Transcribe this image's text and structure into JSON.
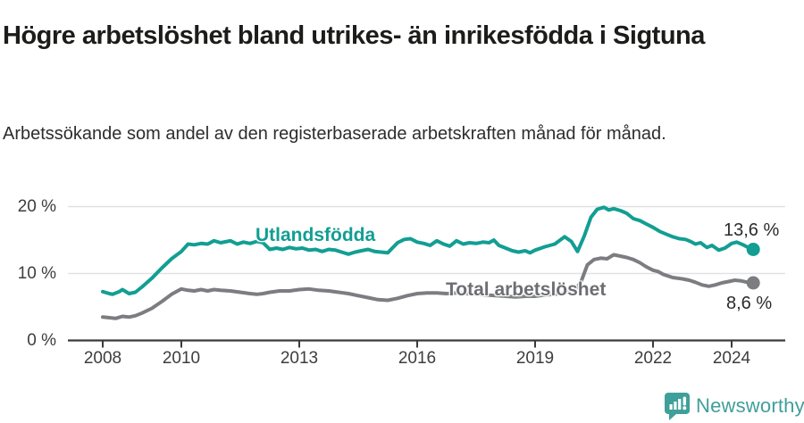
{
  "chart_data": {
    "type": "line",
    "title": "Högre arbetslöshet bland utrikes- än inrikesfödda i Sigtuna",
    "subtitle": "Arbetssökande som andel av den registerbaserade arbetskraften månad för månad.",
    "grid": "horizontal",
    "legend": "inline-labels",
    "x_axis": {
      "ticks": [
        2008,
        2010,
        2013,
        2016,
        2019,
        2022,
        2024
      ],
      "labels": [
        "2008",
        "2010",
        "2013",
        "2016",
        "2019",
        "2022",
        "2024"
      ],
      "range": [
        2008,
        2024.6
      ]
    },
    "y_axis": {
      "ticks": [
        0,
        10,
        20
      ],
      "labels": [
        "0 %",
        "10 %",
        "20 %"
      ],
      "range": [
        0,
        20
      ],
      "unit": "%"
    },
    "series": [
      {
        "name": "Utlandsfödda",
        "color": "#129e93",
        "end_label": "13,6 %",
        "end_value": 13.6,
        "points": [
          [
            2008.0,
            7.3
          ],
          [
            2008.17,
            7.0
          ],
          [
            2008.25,
            6.9
          ],
          [
            2008.42,
            7.3
          ],
          [
            2008.5,
            7.6
          ],
          [
            2008.67,
            7.0
          ],
          [
            2008.83,
            7.2
          ],
          [
            2009.0,
            8.0
          ],
          [
            2009.25,
            9.3
          ],
          [
            2009.5,
            10.8
          ],
          [
            2009.75,
            12.2
          ],
          [
            2010.0,
            13.3
          ],
          [
            2010.17,
            14.4
          ],
          [
            2010.33,
            14.3
          ],
          [
            2010.5,
            14.5
          ],
          [
            2010.67,
            14.4
          ],
          [
            2010.83,
            14.9
          ],
          [
            2011.0,
            14.6
          ],
          [
            2011.25,
            14.9
          ],
          [
            2011.42,
            14.4
          ],
          [
            2011.58,
            14.7
          ],
          [
            2011.75,
            14.5
          ],
          [
            2011.92,
            14.8
          ],
          [
            2012.08,
            14.6
          ],
          [
            2012.25,
            13.6
          ],
          [
            2012.42,
            13.8
          ],
          [
            2012.58,
            13.6
          ],
          [
            2012.75,
            13.9
          ],
          [
            2012.92,
            13.7
          ],
          [
            2013.08,
            13.8
          ],
          [
            2013.25,
            13.5
          ],
          [
            2013.42,
            13.6
          ],
          [
            2013.58,
            13.3
          ],
          [
            2013.75,
            13.6
          ],
          [
            2013.92,
            13.5
          ],
          [
            2014.08,
            13.2
          ],
          [
            2014.25,
            12.9
          ],
          [
            2014.42,
            13.2
          ],
          [
            2014.58,
            13.4
          ],
          [
            2014.75,
            13.6
          ],
          [
            2014.92,
            13.3
          ],
          [
            2015.08,
            13.2
          ],
          [
            2015.25,
            13.1
          ],
          [
            2015.5,
            14.6
          ],
          [
            2015.67,
            15.1
          ],
          [
            2015.83,
            15.2
          ],
          [
            2016.0,
            14.7
          ],
          [
            2016.17,
            14.5
          ],
          [
            2016.33,
            14.2
          ],
          [
            2016.5,
            14.9
          ],
          [
            2016.67,
            14.4
          ],
          [
            2016.83,
            14.1
          ],
          [
            2017.0,
            14.9
          ],
          [
            2017.17,
            14.4
          ],
          [
            2017.33,
            14.6
          ],
          [
            2017.5,
            14.5
          ],
          [
            2017.67,
            14.7
          ],
          [
            2017.83,
            14.6
          ],
          [
            2017.95,
            15.0
          ],
          [
            2018.08,
            14.2
          ],
          [
            2018.25,
            13.8
          ],
          [
            2018.42,
            13.4
          ],
          [
            2018.58,
            13.2
          ],
          [
            2018.75,
            13.4
          ],
          [
            2018.87,
            13.1
          ],
          [
            2019.0,
            13.5
          ],
          [
            2019.25,
            14.0
          ],
          [
            2019.5,
            14.4
          ],
          [
            2019.75,
            15.5
          ],
          [
            2019.92,
            14.8
          ],
          [
            2020.08,
            13.3
          ],
          [
            2020.25,
            15.6
          ],
          [
            2020.42,
            18.4
          ],
          [
            2020.58,
            19.6
          ],
          [
            2020.75,
            19.9
          ],
          [
            2020.87,
            19.5
          ],
          [
            2021.0,
            19.7
          ],
          [
            2021.17,
            19.4
          ],
          [
            2021.33,
            19.0
          ],
          [
            2021.5,
            18.2
          ],
          [
            2021.67,
            17.9
          ],
          [
            2021.83,
            17.4
          ],
          [
            2022.0,
            16.9
          ],
          [
            2022.17,
            16.3
          ],
          [
            2022.33,
            15.9
          ],
          [
            2022.5,
            15.5
          ],
          [
            2022.67,
            15.2
          ],
          [
            2022.83,
            15.1
          ],
          [
            2022.95,
            14.8
          ],
          [
            2023.08,
            14.4
          ],
          [
            2023.21,
            14.6
          ],
          [
            2023.37,
            13.9
          ],
          [
            2023.5,
            14.2
          ],
          [
            2023.67,
            13.5
          ],
          [
            2023.83,
            13.8
          ],
          [
            2024.0,
            14.5
          ],
          [
            2024.13,
            14.7
          ],
          [
            2024.29,
            14.3
          ],
          [
            2024.45,
            13.8
          ],
          [
            2024.55,
            13.6
          ]
        ]
      },
      {
        "name": "Total arbetslöshet",
        "color": "#7c7d80",
        "end_label": "8,6 %",
        "end_value": 8.6,
        "points": [
          [
            2008.0,
            3.5
          ],
          [
            2008.17,
            3.4
          ],
          [
            2008.33,
            3.3
          ],
          [
            2008.5,
            3.6
          ],
          [
            2008.67,
            3.5
          ],
          [
            2008.83,
            3.7
          ],
          [
            2009.0,
            4.1
          ],
          [
            2009.25,
            4.8
          ],
          [
            2009.5,
            5.8
          ],
          [
            2009.75,
            6.9
          ],
          [
            2010.0,
            7.7
          ],
          [
            2010.17,
            7.5
          ],
          [
            2010.33,
            7.4
          ],
          [
            2010.5,
            7.6
          ],
          [
            2010.67,
            7.4
          ],
          [
            2010.83,
            7.6
          ],
          [
            2011.0,
            7.5
          ],
          [
            2011.25,
            7.4
          ],
          [
            2011.5,
            7.2
          ],
          [
            2011.75,
            7.0
          ],
          [
            2011.92,
            6.9
          ],
          [
            2012.08,
            7.0
          ],
          [
            2012.25,
            7.2
          ],
          [
            2012.5,
            7.4
          ],
          [
            2012.75,
            7.4
          ],
          [
            2013.0,
            7.6
          ],
          [
            2013.25,
            7.7
          ],
          [
            2013.5,
            7.5
          ],
          [
            2013.75,
            7.4
          ],
          [
            2014.0,
            7.2
          ],
          [
            2014.25,
            7.0
          ],
          [
            2014.5,
            6.7
          ],
          [
            2014.75,
            6.4
          ],
          [
            2015.0,
            6.1
          ],
          [
            2015.25,
            6.0
          ],
          [
            2015.5,
            6.3
          ],
          [
            2015.75,
            6.7
          ],
          [
            2016.0,
            7.0
          ],
          [
            2016.25,
            7.1
          ],
          [
            2016.5,
            7.1
          ],
          [
            2016.75,
            7.0
          ],
          [
            2017.0,
            7.1
          ],
          [
            2017.25,
            7.0
          ],
          [
            2017.5,
            6.9
          ],
          [
            2017.75,
            6.8
          ],
          [
            2018.0,
            6.7
          ],
          [
            2018.25,
            6.6
          ],
          [
            2018.5,
            6.5
          ],
          [
            2018.75,
            6.6
          ],
          [
            2019.0,
            6.6
          ],
          [
            2019.25,
            6.8
          ],
          [
            2019.5,
            6.9
          ],
          [
            2019.75,
            7.1
          ],
          [
            2020.0,
            7.4
          ],
          [
            2020.17,
            8.8
          ],
          [
            2020.33,
            11.3
          ],
          [
            2020.5,
            12.1
          ],
          [
            2020.67,
            12.3
          ],
          [
            2020.83,
            12.2
          ],
          [
            2021.0,
            12.8
          ],
          [
            2021.17,
            12.6
          ],
          [
            2021.33,
            12.4
          ],
          [
            2021.5,
            12.1
          ],
          [
            2021.67,
            11.6
          ],
          [
            2021.83,
            11.0
          ],
          [
            2022.0,
            10.5
          ],
          [
            2022.13,
            10.3
          ],
          [
            2022.25,
            9.9
          ],
          [
            2022.5,
            9.4
          ],
          [
            2022.75,
            9.2
          ],
          [
            2022.92,
            9.0
          ],
          [
            2023.08,
            8.7
          ],
          [
            2023.25,
            8.3
          ],
          [
            2023.42,
            8.1
          ],
          [
            2023.58,
            8.3
          ],
          [
            2023.75,
            8.6
          ],
          [
            2023.92,
            8.8
          ],
          [
            2024.08,
            9.0
          ],
          [
            2024.25,
            8.9
          ],
          [
            2024.4,
            8.7
          ],
          [
            2024.55,
            8.6
          ]
        ]
      }
    ],
    "colors": {
      "accent_teal": "#129e93",
      "series_gray": "#7c7d80",
      "gridline": "#e2e2e2",
      "axis": "#3b3b3b"
    }
  },
  "footer": {
    "brand": "Newsworthy"
  }
}
